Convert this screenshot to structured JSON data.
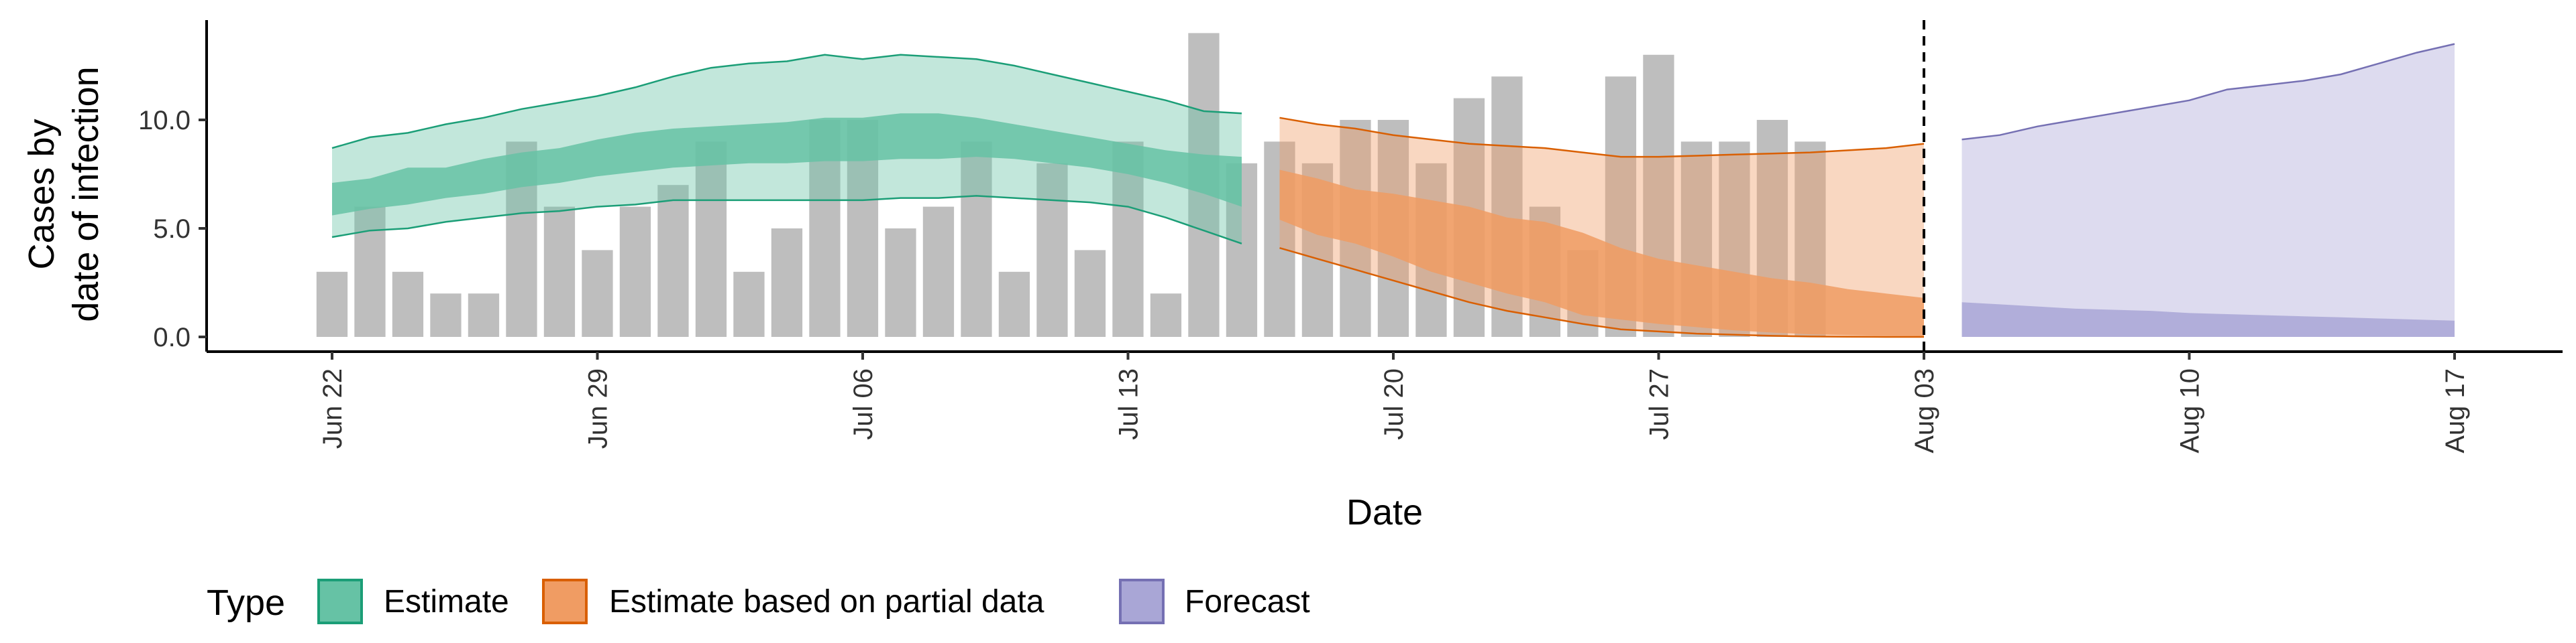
{
  "chart_data": {
    "type": "bar",
    "ylabel_lines": [
      "Cases by",
      "date of infection"
    ],
    "xlabel": "Date",
    "ylim": [
      -0.6,
      14.6
    ],
    "y_ticks": [
      0,
      5,
      10
    ],
    "y_tick_labels": [
      "0.0",
      "5.0",
      "10.0"
    ],
    "x_ticks": [
      "2020-06-22",
      "2020-06-29",
      "2020-07-06",
      "2020-07-13",
      "2020-07-20",
      "2020-07-27",
      "2020-08-03",
      "2020-08-10",
      "2020-08-17"
    ],
    "x_tick_labels": [
      "Jun 22",
      "Jun 29",
      "Jul 06",
      "Jul 13",
      "Jul 20",
      "Jul 27",
      "Aug 03",
      "Aug 10",
      "Aug 17"
    ],
    "xlim": [
      "2020-06-17",
      "2020-08-19"
    ],
    "vline_date": "2020-08-03",
    "bars": {
      "dates": [
        "2020-06-22",
        "2020-06-23",
        "2020-06-24",
        "2020-06-25",
        "2020-06-26",
        "2020-06-27",
        "2020-06-28",
        "2020-06-29",
        "2020-06-30",
        "2020-07-01",
        "2020-07-02",
        "2020-07-03",
        "2020-07-04",
        "2020-07-05",
        "2020-07-06",
        "2020-07-07",
        "2020-07-08",
        "2020-07-09",
        "2020-07-10",
        "2020-07-11",
        "2020-07-12",
        "2020-07-13",
        "2020-07-14",
        "2020-07-15",
        "2020-07-16",
        "2020-07-17",
        "2020-07-18",
        "2020-07-19",
        "2020-07-20",
        "2020-07-21",
        "2020-07-22",
        "2020-07-23",
        "2020-07-24",
        "2020-07-25",
        "2020-07-26",
        "2020-07-27",
        "2020-07-28",
        "2020-07-29",
        "2020-07-30",
        "2020-07-31"
      ],
      "values": [
        3,
        6,
        3,
        2,
        2,
        9,
        6,
        4,
        6,
        7,
        9,
        3,
        5,
        10,
        10,
        5,
        6,
        9,
        3,
        8,
        4,
        9,
        2,
        14,
        8,
        9,
        8,
        10,
        10,
        8,
        11,
        12,
        6,
        4,
        12,
        13,
        9,
        9,
        10,
        9
      ],
      "color": "#bebebe"
    },
    "series": [
      {
        "name": "Estimate",
        "fill": "#66c2a5",
        "stroke": "#1b9e77",
        "dates": [
          "2020-06-22",
          "2020-06-23",
          "2020-06-24",
          "2020-06-25",
          "2020-06-26",
          "2020-06-27",
          "2020-06-28",
          "2020-06-29",
          "2020-06-30",
          "2020-07-01",
          "2020-07-02",
          "2020-07-03",
          "2020-07-04",
          "2020-07-05",
          "2020-07-06",
          "2020-07-07",
          "2020-07-08",
          "2020-07-09",
          "2020-07-10",
          "2020-07-11",
          "2020-07-12",
          "2020-07-13",
          "2020-07-14",
          "2020-07-15",
          "2020-07-16"
        ],
        "lower90": [
          4.6,
          4.9,
          5.0,
          5.3,
          5.5,
          5.7,
          5.8,
          6.0,
          6.1,
          6.3,
          6.3,
          6.3,
          6.3,
          6.3,
          6.3,
          6.4,
          6.4,
          6.5,
          6.4,
          6.3,
          6.2,
          6.0,
          5.5,
          4.9,
          4.3
        ],
        "upper90": [
          8.7,
          9.2,
          9.4,
          9.8,
          10.1,
          10.5,
          10.8,
          11.1,
          11.5,
          12.0,
          12.4,
          12.6,
          12.7,
          13.0,
          12.8,
          13.0,
          12.9,
          12.8,
          12.5,
          12.1,
          11.7,
          11.3,
          10.9,
          10.4,
          10.3
        ],
        "lower50": [
          5.6,
          5.9,
          6.1,
          6.4,
          6.6,
          6.9,
          7.1,
          7.4,
          7.6,
          7.8,
          7.9,
          8.0,
          8.0,
          8.1,
          8.1,
          8.2,
          8.2,
          8.3,
          8.2,
          8.0,
          7.8,
          7.5,
          7.1,
          6.6,
          6.0
        ],
        "upper50": [
          7.1,
          7.3,
          7.8,
          7.8,
          8.2,
          8.5,
          8.7,
          9.1,
          9.4,
          9.6,
          9.7,
          9.8,
          9.9,
          10.1,
          10.1,
          10.3,
          10.3,
          10.1,
          9.8,
          9.5,
          9.2,
          8.9,
          8.6,
          8.4,
          8.3
        ]
      },
      {
        "name": "Estimate based on partial data",
        "fill": "#f09c63",
        "stroke": "#d95f02",
        "dates": [
          "2020-07-17",
          "2020-07-18",
          "2020-07-19",
          "2020-07-20",
          "2020-07-21",
          "2020-07-22",
          "2020-07-23",
          "2020-07-24",
          "2020-07-25",
          "2020-07-26",
          "2020-07-27",
          "2020-07-28",
          "2020-07-29",
          "2020-07-30",
          "2020-07-31",
          "2020-08-01",
          "2020-08-02",
          "2020-08-03"
        ],
        "lower90": [
          4.1,
          3.6,
          3.1,
          2.6,
          2.1,
          1.6,
          1.2,
          0.9,
          0.6,
          0.35,
          0.25,
          0.15,
          0.1,
          0.05,
          0.02,
          0.01,
          0.0,
          0.0
        ],
        "upper90": [
          10.1,
          9.8,
          9.6,
          9.3,
          9.1,
          8.9,
          8.8,
          8.7,
          8.5,
          8.3,
          8.3,
          8.35,
          8.4,
          8.45,
          8.5,
          8.6,
          8.7,
          8.9
        ],
        "lower50": [
          5.4,
          4.7,
          4.3,
          3.7,
          3.0,
          2.5,
          2.0,
          1.6,
          1.0,
          0.8,
          0.6,
          0.45,
          0.3,
          0.2,
          0.12,
          0.08,
          0.05,
          0.03
        ],
        "upper50": [
          7.7,
          7.3,
          6.8,
          6.6,
          6.3,
          6.0,
          5.5,
          5.3,
          4.8,
          4.1,
          3.6,
          3.3,
          3.0,
          2.7,
          2.5,
          2.2,
          2.0,
          1.8
        ]
      },
      {
        "name": "Forecast",
        "fill": "#a9a6d6",
        "stroke": "#7570b3",
        "dates": [
          "2020-08-04",
          "2020-08-05",
          "2020-08-06",
          "2020-08-07",
          "2020-08-08",
          "2020-08-09",
          "2020-08-10",
          "2020-08-11",
          "2020-08-12",
          "2020-08-13",
          "2020-08-14",
          "2020-08-15",
          "2020-08-16",
          "2020-08-17"
        ],
        "lower90": [
          0,
          0,
          0,
          0,
          0,
          0,
          0,
          0,
          0,
          0,
          0,
          0,
          0,
          0
        ],
        "upper90": [
          9.1,
          9.3,
          9.7,
          10.0,
          10.3,
          10.6,
          10.9,
          11.4,
          11.6,
          11.8,
          12.1,
          12.6,
          13.1,
          13.5
        ],
        "lower50": [
          0,
          0,
          0,
          0,
          0,
          0,
          0,
          0,
          0,
          0,
          0,
          0,
          0,
          0
        ],
        "upper50": [
          1.6,
          1.5,
          1.4,
          1.3,
          1.25,
          1.2,
          1.1,
          1.05,
          1.0,
          0.95,
          0.9,
          0.85,
          0.8,
          0.75
        ]
      }
    ],
    "legend": {
      "title": "Type",
      "position": "bottom-left",
      "items": [
        "Estimate",
        "Estimate based on partial data",
        "Forecast"
      ]
    }
  }
}
